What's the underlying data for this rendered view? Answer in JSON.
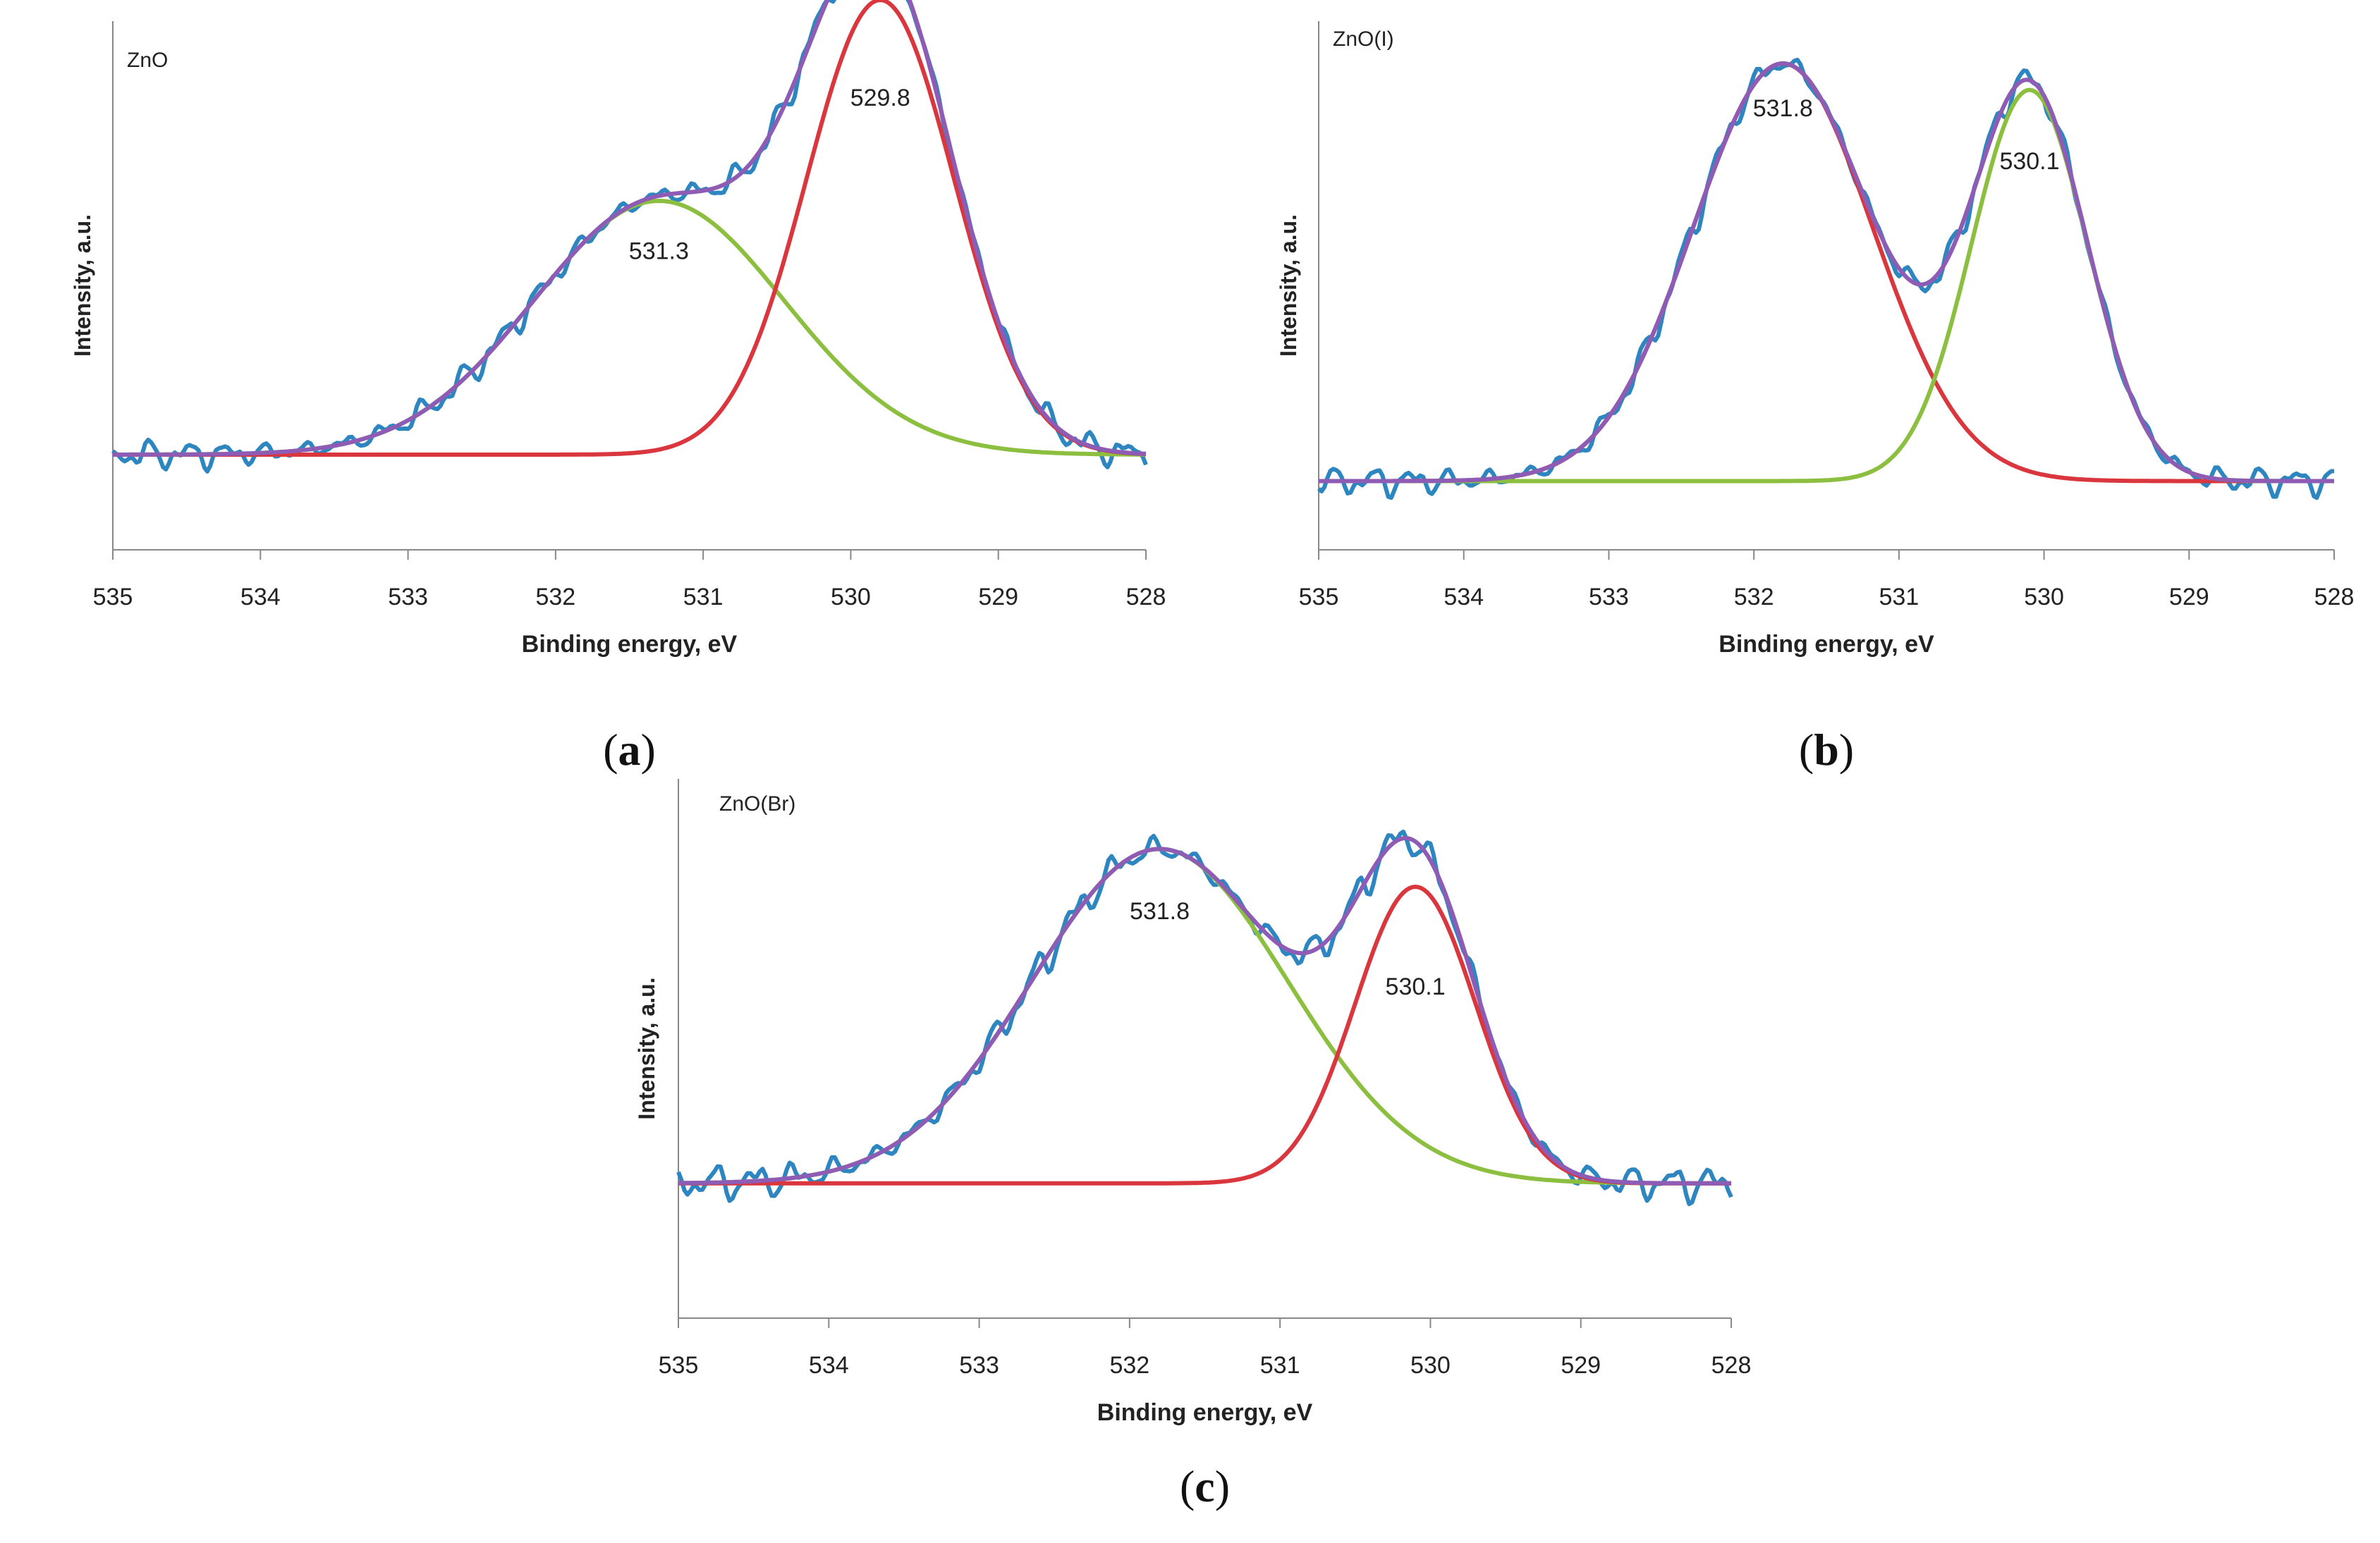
{
  "chart_data": [
    {
      "type": "line",
      "panel_label": "a",
      "title": "ZnO",
      "xlabel": "Binding energy, eV",
      "ylabel": "Intensity, a.u.",
      "xlim": [
        535,
        528
      ],
      "x_reversed": true,
      "ylim": [
        0,
        1
      ],
      "x_ticks": [
        535,
        534,
        533,
        532,
        531,
        530,
        529,
        528
      ],
      "grid": false,
      "colors": {
        "data": "#2e86c1",
        "green": "#8cbf3f",
        "red": "#d9363e",
        "envelope": "#8e5bb5"
      },
      "baseline": 0.18,
      "components": [
        {
          "color": "green",
          "center": 531.3,
          "amplitude": 0.48,
          "sigma": 0.85
        },
        {
          "color": "red",
          "center": 529.8,
          "amplitude": 0.86,
          "sigma": 0.5
        }
      ],
      "peak_labels": [
        {
          "text": "529.8",
          "x": 529.8,
          "y": 0.84
        },
        {
          "text": "531.3",
          "x": 531.3,
          "y": 0.55
        }
      ],
      "noise_amplitude": 0.025
    },
    {
      "type": "line",
      "panel_label": "b",
      "title": "ZnO(I)",
      "xlabel": "Binding energy, eV",
      "ylabel": "Intensity, a.u.",
      "xlim": [
        535,
        528
      ],
      "x_reversed": true,
      "ylim": [
        0,
        1
      ],
      "x_ticks": [
        535,
        534,
        533,
        532,
        531,
        530,
        529,
        528
      ],
      "grid": false,
      "colors": {
        "data": "#2e86c1",
        "green": "#8cbf3f",
        "red": "#d9363e",
        "envelope": "#8e5bb5"
      },
      "baseline": 0.13,
      "components": [
        {
          "color": "red",
          "center": 531.8,
          "amplitude": 0.79,
          "sigma": 0.62
        },
        {
          "color": "green",
          "center": 530.1,
          "amplitude": 0.74,
          "sigma": 0.4
        }
      ],
      "peak_labels": [
        {
          "text": "531.8",
          "x": 531.8,
          "y": 0.82
        },
        {
          "text": "530.1",
          "x": 530.1,
          "y": 0.72
        }
      ],
      "noise_amplitude": 0.025
    },
    {
      "type": "line",
      "panel_label": "c",
      "title": "ZnO(Br)",
      "xlabel": "Binding energy, eV",
      "ylabel": "Intensity, a.u.",
      "xlim": [
        535,
        528
      ],
      "x_reversed": true,
      "ylim": [
        0,
        1
      ],
      "x_ticks": [
        535,
        534,
        533,
        532,
        531,
        530,
        529,
        528
      ],
      "grid": false,
      "colors": {
        "data": "#2e86c1",
        "green": "#8cbf3f",
        "red": "#d9363e",
        "envelope": "#8e5bb5"
      },
      "baseline": 0.25,
      "components": [
        {
          "color": "green",
          "center": 531.8,
          "amplitude": 0.62,
          "sigma": 0.85
        },
        {
          "color": "red",
          "center": 530.1,
          "amplitude": 0.55,
          "sigma": 0.4
        }
      ],
      "peak_labels": [
        {
          "text": "531.8",
          "x": 531.8,
          "y": 0.74
        },
        {
          "text": "530.1",
          "x": 530.1,
          "y": 0.6
        }
      ],
      "noise_amplitude": 0.03
    }
  ]
}
